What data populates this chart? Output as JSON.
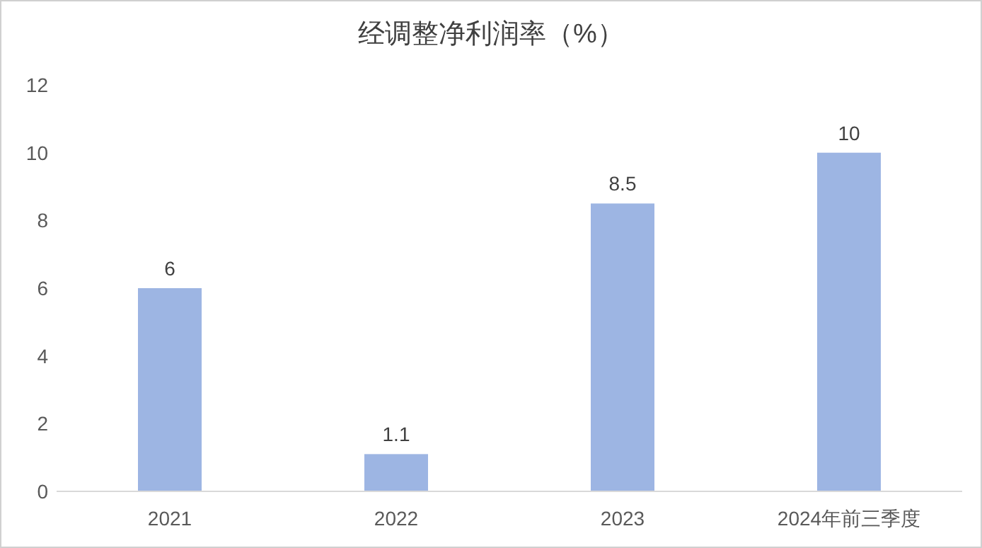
{
  "chart_data": {
    "type": "bar",
    "title": "经调整净利润率（%）",
    "categories": [
      "2021",
      "2022",
      "2023",
      "2024年前三季度"
    ],
    "values": [
      6,
      1.1,
      8.5,
      10
    ],
    "color": "#9db5e3",
    "ylim": [
      0,
      12
    ],
    "yticks": [
      0,
      2,
      4,
      6,
      8,
      10,
      12
    ],
    "data_labels": true
  }
}
